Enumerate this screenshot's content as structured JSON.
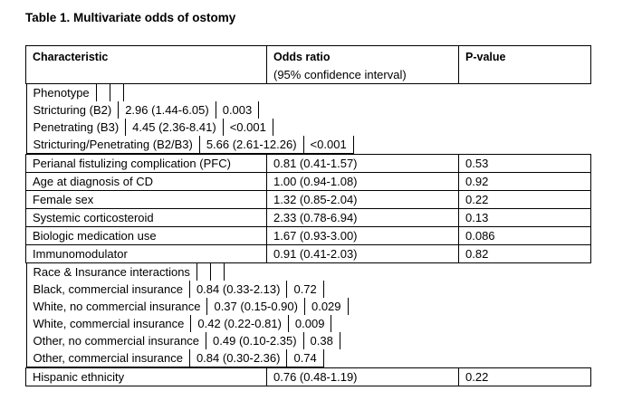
{
  "title": "Table 1. Multivariate odds of ostomy",
  "headers": {
    "characteristic": "Characteristic",
    "odds_ratio": "Odds ratio",
    "odds_ratio_sub": "(95% confidence interval)",
    "p_value": "P-value"
  },
  "phenotype": {
    "label": "Phenotype",
    "rows": [
      {
        "label": "Stricturing (B2)",
        "or": "2.96 (1.44-6.05)",
        "p": "0.003"
      },
      {
        "label": "Penetrating (B3)",
        "or": "4.45 (2.36-8.41)",
        "p": "<0.001"
      },
      {
        "label": "Stricturing/Penetrating (B2/B3)",
        "or": "5.66 (2.61-12.26)",
        "p": "<0.001"
      }
    ]
  },
  "rows": [
    {
      "label": "Perianal fistulizing complication (PFC)",
      "or": "0.81 (0.41-1.57)",
      "p": "0.53"
    },
    {
      "label": "Age at diagnosis of CD",
      "or": "1.00 (0.94-1.08)",
      "p": "0.92"
    },
    {
      "label": "Female sex",
      "or": "1.32 (0.85-2.04)",
      "p": "0.22"
    },
    {
      "label": "Systemic corticosteroid",
      "or": "2.33 (0.78-6.94)",
      "p": "0.13"
    },
    {
      "label": "Biologic medication use",
      "or": "1.67 (0.93-3.00)",
      "p": "0.086"
    },
    {
      "label": "Immunomodulator",
      "or": "0.91 (0.41-2.03)",
      "p": "0.82"
    }
  ],
  "race": {
    "label": "Race & Insurance interactions",
    "rows": [
      {
        "label": "Black, commercial insurance",
        "or": "0.84 (0.33-2.13)",
        "p": "0.72"
      },
      {
        "label": "White, no commercial insurance",
        "or": "0.37 (0.15-0.90)",
        "p": "0.029"
      },
      {
        "label": "White, commercial insurance",
        "or": "0.42 (0.22-0.81)",
        "p": "0.009"
      },
      {
        "label": "Other, no commercial insurance",
        "or": "0.49 (0.10-2.35)",
        "p": "0.38"
      },
      {
        "label": "Other, commercial insurance",
        "or": "0.84 (0.30-2.36)",
        "p": "0.74"
      }
    ]
  },
  "final_row": {
    "label": "Hispanic ethnicity",
    "or": "0.76 (0.48-1.19)",
    "p": "0.22"
  }
}
